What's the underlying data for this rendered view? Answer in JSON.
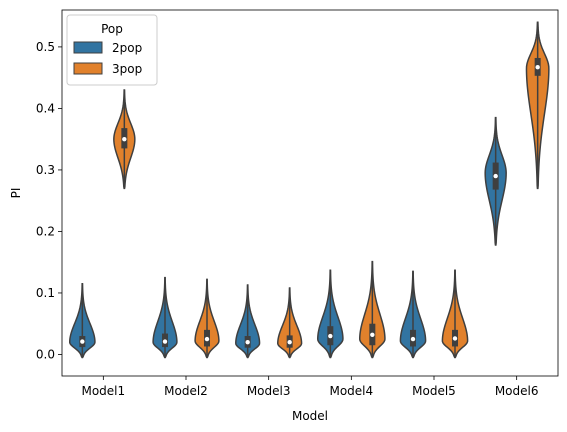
{
  "chart_data": {
    "type": "violin",
    "title": "",
    "xlabel": "Model",
    "ylabel": "PI",
    "categories": [
      "Model1",
      "Model2",
      "Model3",
      "Model4",
      "Model5",
      "Model6"
    ],
    "ylim": [
      -0.035,
      0.56
    ],
    "yticks": [
      0.0,
      0.1,
      0.2,
      0.3,
      0.4,
      0.5
    ],
    "ytick_labels": [
      "0.0",
      "0.1",
      "0.2",
      "0.3",
      "0.4",
      "0.5"
    ],
    "grid": false,
    "legend": {
      "title": "Pop",
      "placement": "top-left"
    },
    "series": [
      {
        "name": "2pop",
        "color": "#3274a1",
        "violins": [
          {
            "min": -0.005,
            "max": 0.115,
            "q1": 0.012,
            "median": 0.021,
            "q3": 0.03,
            "peak": 0.02,
            "maxwidth": 0.9
          },
          {
            "min": -0.005,
            "max": 0.125,
            "q1": 0.012,
            "median": 0.021,
            "q3": 0.034,
            "peak": 0.02,
            "maxwidth": 0.85
          },
          {
            "min": -0.005,
            "max": 0.113,
            "q1": 0.011,
            "median": 0.02,
            "q3": 0.03,
            "peak": 0.018,
            "maxwidth": 0.85
          },
          {
            "min": -0.005,
            "max": 0.137,
            "q1": 0.015,
            "median": 0.03,
            "q3": 0.046,
            "peak": 0.025,
            "maxwidth": 0.9
          },
          {
            "min": -0.005,
            "max": 0.135,
            "q1": 0.013,
            "median": 0.025,
            "q3": 0.04,
            "peak": 0.022,
            "maxwidth": 0.9
          },
          {
            "min": 0.178,
            "max": 0.385,
            "q1": 0.268,
            "median": 0.29,
            "q3": 0.312,
            "peak": 0.295,
            "maxwidth": 0.75
          }
        ]
      },
      {
        "name": "3pop",
        "color": "#e1812c",
        "violins": [
          {
            "min": 0.27,
            "max": 0.43,
            "q1": 0.335,
            "median": 0.35,
            "q3": 0.368,
            "peak": 0.35,
            "maxwidth": 0.75
          },
          {
            "min": -0.005,
            "max": 0.122,
            "q1": 0.013,
            "median": 0.025,
            "q3": 0.04,
            "peak": 0.022,
            "maxwidth": 0.85
          },
          {
            "min": -0.005,
            "max": 0.108,
            "q1": 0.011,
            "median": 0.02,
            "q3": 0.031,
            "peak": 0.018,
            "maxwidth": 0.85
          },
          {
            "min": -0.005,
            "max": 0.151,
            "q1": 0.015,
            "median": 0.032,
            "q3": 0.05,
            "peak": 0.025,
            "maxwidth": 0.9
          },
          {
            "min": -0.005,
            "max": 0.137,
            "q1": 0.013,
            "median": 0.026,
            "q3": 0.04,
            "peak": 0.022,
            "maxwidth": 0.9
          },
          {
            "min": 0.27,
            "max": 0.54,
            "q1": 0.453,
            "median": 0.467,
            "q3": 0.482,
            "peak": 0.465,
            "maxwidth": 0.8
          }
        ]
      }
    ]
  }
}
